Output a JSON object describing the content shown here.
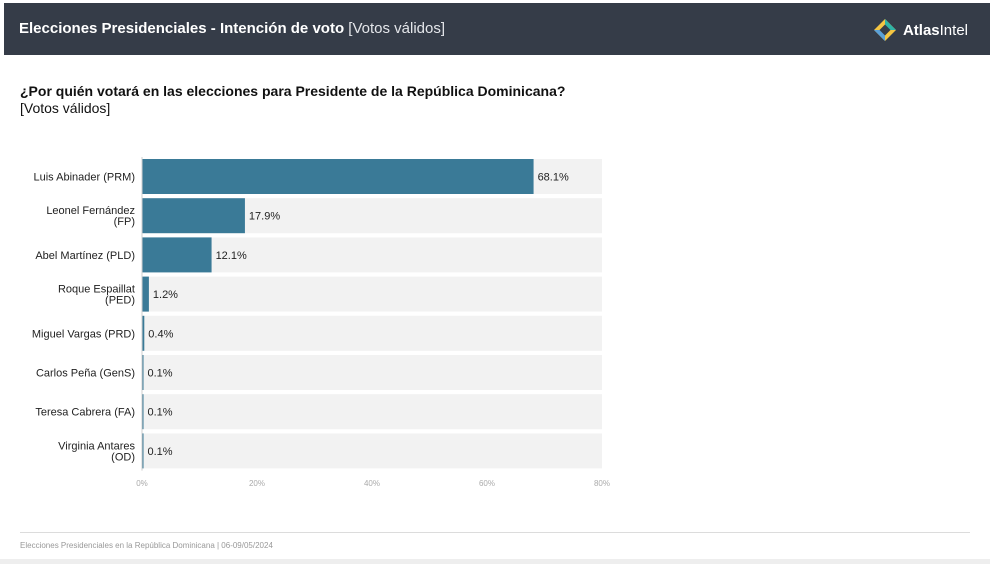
{
  "header": {
    "title_bold": "Elecciones Presidenciales - Intención de voto",
    "title_light": "[Votos válidos]",
    "brand_bold": "Atlas",
    "brand_light": "Intel",
    "logo_icon": "atlasintel-logo-icon"
  },
  "question": "¿Por quién votará en las elecciones para Presidente de la República Dominicana?",
  "subquestion": "[Votos válidos]",
  "chart_data": {
    "type": "bar",
    "orientation": "horizontal",
    "categories": [
      [
        "Luis Abinader (PRM)"
      ],
      [
        "Leonel Fernández",
        "(FP)"
      ],
      [
        "Abel Martínez (PLD)"
      ],
      [
        "Roque Espaillat",
        "(PED)"
      ],
      [
        "Miguel Vargas (PRD)"
      ],
      [
        "Carlos Peña (GenS)"
      ],
      [
        "Teresa Cabrera (FA)"
      ],
      [
        "Virginia Antares",
        "(OD)"
      ]
    ],
    "values": [
      68.1,
      17.9,
      12.1,
      1.2,
      0.4,
      0.1,
      0.1,
      0.1
    ],
    "value_labels": [
      "68.1%",
      "17.9%",
      "12.1%",
      "1.2%",
      "0.4%",
      "0.1%",
      "0.1%",
      "0.1%"
    ],
    "xlim": [
      0,
      80
    ],
    "xticks": [
      0,
      20,
      40,
      60,
      80
    ],
    "xtick_labels": [
      "0%",
      "20%",
      "40%",
      "60%",
      "80%"
    ],
    "bar_color": "#3a7a97",
    "track_color": "#f2f2f2",
    "grid": false,
    "legend": "none"
  },
  "footer": "Elecciones Presidenciales en la República Dominicana | 06-09/05/2024"
}
